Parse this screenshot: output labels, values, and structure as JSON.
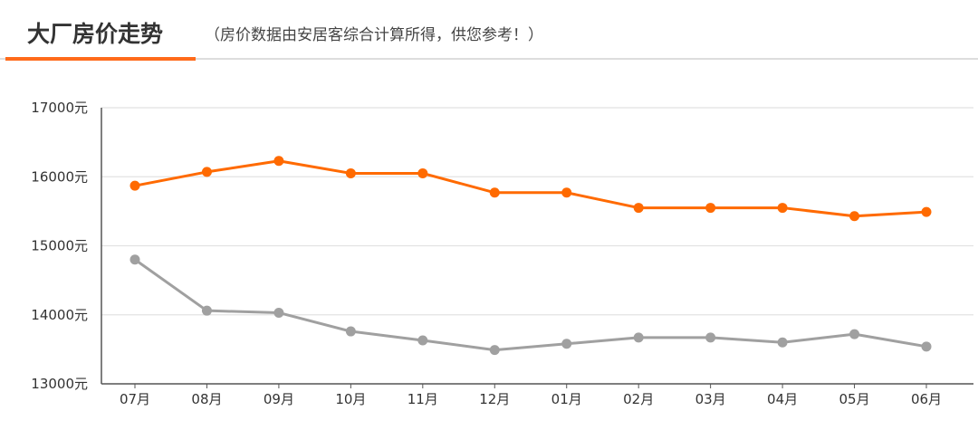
{
  "header": {
    "title": "大厂房价走势",
    "subtitle": "（房价数据由安居客综合计算所得，供您参考！）"
  },
  "colors": {
    "accent": "#ff6a1a",
    "series_1": "#ff6a00",
    "series_2": "#a0a0a0",
    "grid": "#e2e2e2",
    "axis": "#555555"
  },
  "chart_data": {
    "type": "line",
    "title": "",
    "xlabel": "",
    "ylabel": "",
    "categories": [
      "07月",
      "08月",
      "09月",
      "10月",
      "11月",
      "12月",
      "01月",
      "02月",
      "03月",
      "04月",
      "05月",
      "06月"
    ],
    "y_ticks": [
      "13000元",
      "14000元",
      "15000元",
      "16000元",
      "17000元"
    ],
    "ylim": [
      13000,
      17000
    ],
    "grid": true,
    "legend": "none",
    "series": [
      {
        "values": [
          15870,
          16070,
          16230,
          16050,
          16050,
          15770,
          15770,
          15550,
          15550,
          15550,
          15430,
          15490
        ]
      },
      {
        "values": [
          14800,
          14060,
          14030,
          13760,
          13630,
          13490,
          13580,
          13670,
          13670,
          13600,
          13720,
          13540
        ]
      }
    ]
  }
}
